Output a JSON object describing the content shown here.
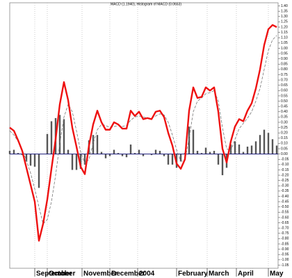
{
  "chart_data": {
    "type": "macd",
    "title": "MACD (1.1940), Histogram of MACD (0.0653)",
    "x": [
      0,
      3,
      6,
      9,
      12,
      15,
      18,
      21,
      24,
      27,
      30,
      33,
      36,
      39,
      42,
      45,
      48,
      51,
      54,
      57,
      60,
      63,
      66,
      69,
      72,
      75,
      78,
      81,
      84,
      87,
      90,
      93,
      96,
      99,
      102,
      105,
      108,
      111,
      114,
      117,
      120,
      123,
      126,
      129,
      132,
      135,
      138,
      141,
      144,
      147,
      150,
      153,
      156,
      159,
      162,
      165,
      168,
      171,
      174,
      177,
      180,
      183,
      186,
      189,
      192
    ],
    "series": [
      {
        "kind": "bar",
        "color": "#555555",
        "values": [
          0.03,
          0.04,
          0.01,
          -0.01,
          -0.07,
          -0.11,
          -0.12,
          -0.32,
          0.0,
          0.19,
          0.31,
          0.34,
          0.37,
          0.33,
          0.04,
          -0.15,
          -0.15,
          -0.14,
          -0.1,
          0.13,
          0.18,
          0.18,
          0.02,
          -0.04,
          -0.02,
          0.04,
          0.01,
          -0.02,
          -0.03,
          0.09,
          0.01,
          0.04,
          -0.02,
          0.0,
          -0.01,
          0.04,
          0.03,
          -0.02,
          -0.1,
          -0.1,
          -0.13,
          -0.07,
          0.01,
          0.26,
          0.23,
          0.03,
          0.01,
          0.06,
          0.02,
          0.03,
          -0.1,
          -0.2,
          -0.13,
          0.09,
          0.12,
          0.09,
          0.02,
          0.07,
          0.08,
          0.12,
          0.18,
          0.23,
          0.2,
          0.14,
          0.08
        ]
      },
      {
        "kind": "dashed",
        "color": "#777777",
        "values": [
          0.22,
          0.18,
          0.12,
          0.04,
          -0.06,
          -0.18,
          -0.33,
          -0.5,
          -0.66,
          -0.62,
          -0.45,
          -0.2,
          0.1,
          0.35,
          0.47,
          0.4,
          0.22,
          0.02,
          -0.09,
          -0.05,
          0.1,
          0.23,
          0.28,
          0.27,
          0.25,
          0.26,
          0.27,
          0.26,
          0.27,
          0.32,
          0.35,
          0.36,
          0.35,
          0.34,
          0.34,
          0.36,
          0.38,
          0.37,
          0.3,
          0.18,
          0.04,
          -0.07,
          -0.06,
          0.15,
          0.4,
          0.5,
          0.53,
          0.57,
          0.58,
          0.6,
          0.5,
          0.25,
          0.05,
          0.03,
          0.14,
          0.24,
          0.29,
          0.34,
          0.4,
          0.5,
          0.62,
          0.8,
          0.98,
          1.08,
          1.12
        ]
      },
      {
        "kind": "line",
        "color": "#ee1111",
        "values": [
          0.25,
          0.22,
          0.13,
          0.03,
          -0.13,
          -0.29,
          -0.45,
          -0.82,
          -0.66,
          -0.43,
          -0.14,
          0.14,
          0.47,
          0.68,
          0.51,
          0.25,
          0.07,
          -0.12,
          -0.19,
          0.08,
          0.28,
          0.41,
          0.3,
          0.23,
          0.23,
          0.3,
          0.28,
          0.24,
          0.24,
          0.41,
          0.36,
          0.4,
          0.33,
          0.34,
          0.33,
          0.4,
          0.41,
          0.35,
          0.2,
          0.08,
          -0.09,
          -0.14,
          -0.05,
          0.41,
          0.63,
          0.53,
          0.54,
          0.63,
          0.6,
          0.63,
          0.4,
          0.05,
          -0.08,
          0.12,
          0.26,
          0.33,
          0.31,
          0.41,
          0.48,
          0.62,
          0.8,
          1.03,
          1.18,
          1.22,
          1.2
        ]
      }
    ],
    "xlim": [
      0,
      193
    ],
    "xticks": [
      {
        "value": 18,
        "label": "September"
      },
      {
        "value": 27,
        "label": "October"
      },
      {
        "value": 52,
        "label": "November"
      },
      {
        "value": 72,
        "label": "December"
      },
      {
        "value": 92,
        "label": "2004"
      },
      {
        "value": 120,
        "label": "February"
      },
      {
        "value": 142,
        "label": "March"
      },
      {
        "value": 163,
        "label": "April"
      },
      {
        "value": 186,
        "label": "May"
      }
    ],
    "ylim": [
      -1.08,
      1.43
    ],
    "yticks": [
      {
        "value": 1.4,
        "label": "1.40"
      },
      {
        "value": 1.35,
        "label": "1.35"
      },
      {
        "value": 1.3,
        "label": "1.30"
      },
      {
        "value": 1.25,
        "label": "1.25"
      },
      {
        "value": 1.2,
        "label": "1.20"
      },
      {
        "value": 1.15,
        "label": "1.15"
      },
      {
        "value": 1.1,
        "label": "1.10"
      },
      {
        "value": 1.05,
        "label": "1.05"
      },
      {
        "value": 1.0,
        "label": "1.00"
      },
      {
        "value": 0.95,
        "label": "0.95"
      },
      {
        "value": 0.9,
        "label": "0.90"
      },
      {
        "value": 0.85,
        "label": "0.85"
      },
      {
        "value": 0.8,
        "label": "0.80"
      },
      {
        "value": 0.75,
        "label": "0.75"
      },
      {
        "value": 0.7,
        "label": "0.70"
      },
      {
        "value": 0.65,
        "label": "0.65"
      },
      {
        "value": 0.6,
        "label": "0.60"
      },
      {
        "value": 0.55,
        "label": "0.55"
      },
      {
        "value": 0.5,
        "label": "0.50"
      },
      {
        "value": 0.45,
        "label": "0.45"
      },
      {
        "value": 0.4,
        "label": "0.40"
      },
      {
        "value": 0.35,
        "label": "0.35"
      },
      {
        "value": 0.3,
        "label": "0.30"
      },
      {
        "value": 0.25,
        "label": "0.25"
      },
      {
        "value": 0.2,
        "label": "0.20"
      },
      {
        "value": 0.15,
        "label": "0.15"
      },
      {
        "value": 0.1,
        "label": "0.10"
      },
      {
        "value": 0.05,
        "label": "0.05"
      },
      {
        "value": 0,
        "label": "0.00"
      },
      {
        "value": -0.05,
        "label": "-0.05"
      },
      {
        "value": -0.1,
        "label": "-0.10"
      },
      {
        "value": -0.15,
        "label": "-0.15"
      },
      {
        "value": -0.2,
        "label": "-0.20"
      },
      {
        "value": -0.25,
        "label": "-0.25"
      },
      {
        "value": -0.3,
        "label": "-0.30"
      },
      {
        "value": -0.35,
        "label": "-0.35"
      },
      {
        "value": -0.4,
        "label": "-0.40"
      },
      {
        "value": -0.45,
        "label": "-0.45"
      },
      {
        "value": -0.5,
        "label": "-0.50"
      },
      {
        "value": -0.55,
        "label": "-0.55"
      },
      {
        "value": -0.6,
        "label": "-0.60"
      },
      {
        "value": -0.65,
        "label": "-0.65"
      },
      {
        "value": -0.7,
        "label": "-0.70"
      },
      {
        "value": -0.75,
        "label": "-0.75"
      },
      {
        "value": -0.8,
        "label": "-0.80"
      },
      {
        "value": -0.85,
        "label": "-0.85"
      },
      {
        "value": -0.9,
        "label": "-0.90"
      },
      {
        "value": -0.95,
        "label": "-0.95"
      },
      {
        "value": -1.0,
        "label": "-1.00"
      },
      {
        "value": -1.05,
        "label": "-1.05"
      }
    ],
    "zero_line_color": "#1a1a7a",
    "grid": true
  }
}
